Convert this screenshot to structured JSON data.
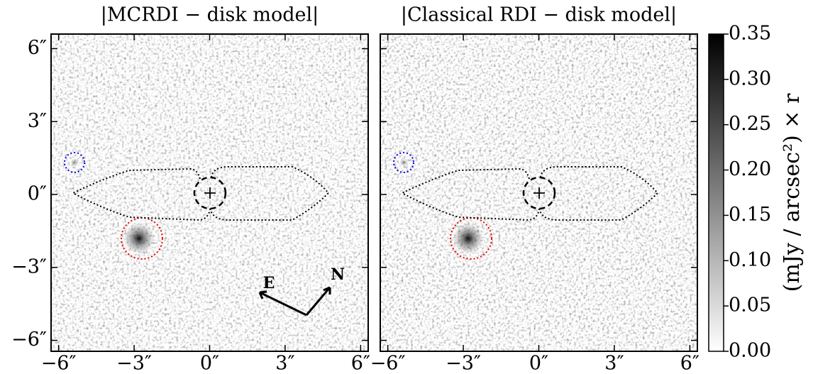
{
  "chart_data": [
    {
      "type": "image",
      "title": "|MCRDI − disk model|",
      "xlim": [
        -6.3,
        6.3
      ],
      "ylim": [
        -6.45,
        6.6
      ],
      "xticks": [
        {
          "value": -6,
          "label": "−6″"
        },
        {
          "value": -3,
          "label": "−3″"
        },
        {
          "value": 0,
          "label": "0″"
        },
        {
          "value": 3,
          "label": "3″"
        },
        {
          "value": 6,
          "label": "6″"
        }
      ],
      "yticks": [
        {
          "value": -6,
          "label": "−6″"
        },
        {
          "value": -3,
          "label": "−3″"
        },
        {
          "value": 0,
          "label": "0″"
        },
        {
          "value": 3,
          "label": "3″"
        },
        {
          "value": 6,
          "label": "6″"
        }
      ],
      "annotations": [
        "E",
        "N"
      ]
    },
    {
      "type": "image",
      "title": "|Classical RDI − disk model|",
      "xlim": [
        -6.3,
        6.3
      ],
      "ylim": [
        -6.45,
        6.6
      ],
      "xticks": [
        {
          "value": -6,
          "label": "−6″"
        },
        {
          "value": -3,
          "label": "−3″"
        },
        {
          "value": 0,
          "label": "0″"
        },
        {
          "value": 3,
          "label": "3″"
        },
        {
          "value": 6,
          "label": "6″"
        }
      ],
      "yticks": [
        -6,
        -3,
        0,
        3,
        6
      ]
    },
    {
      "type": "colorbar",
      "label": "(mJy / arcsec²) × r",
      "ylim": [
        0,
        0.35
      ],
      "colors": [
        "#ffffff",
        "#000000"
      ],
      "yticks": [
        {
          "value": 0,
          "label": "0.00"
        },
        {
          "value": 0.05,
          "label": "0.05"
        },
        {
          "value": 0.1,
          "label": "0.10"
        },
        {
          "value": 0.15,
          "label": "0.15"
        },
        {
          "value": 0.2,
          "label": "0.20"
        },
        {
          "value": 0.25,
          "label": "0.25"
        },
        {
          "value": 0.3,
          "label": "0.30"
        },
        {
          "value": 0.35,
          "label": "0.35"
        }
      ]
    }
  ]
}
